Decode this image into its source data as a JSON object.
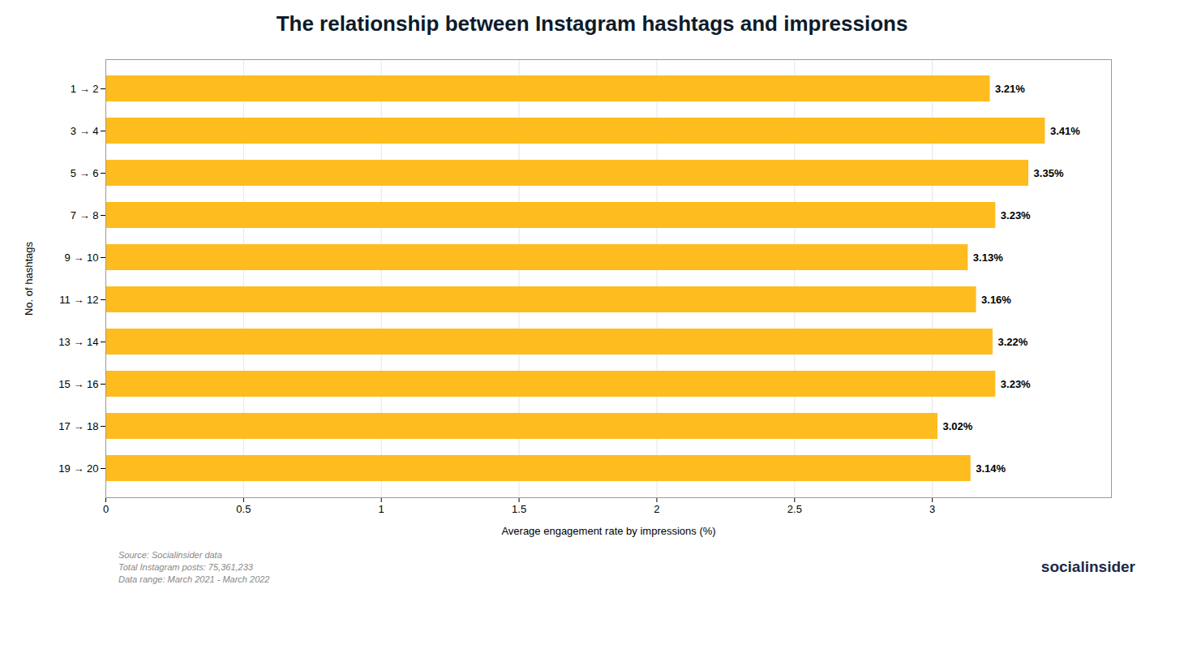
{
  "chart_data": {
    "type": "bar",
    "orientation": "horizontal",
    "title": "The relationship between Instagram hashtags and impressions",
    "categories": [
      "1 → 2",
      "3 → 4",
      "5 → 6",
      "7 → 8",
      "9 → 10",
      "11 → 12",
      "13 → 14",
      "15 → 16",
      "17 → 18",
      "19 → 20"
    ],
    "values": [
      3.21,
      3.41,
      3.35,
      3.23,
      3.13,
      3.16,
      3.22,
      3.23,
      3.02,
      3.14
    ],
    "value_labels": [
      "3.21%",
      "3.41%",
      "3.35%",
      "3.23%",
      "3.13%",
      "3.16%",
      "3.22%",
      "3.23%",
      "3.02%",
      "3.14%"
    ],
    "data_labels": true,
    "color": "#FFBC1F",
    "xlabel": "Average engagement rate by impressions (%)",
    "ylabel": "No. of hashtags",
    "xlim": [
      0,
      3.65
    ],
    "xticks": [
      0,
      0.5,
      1,
      1.5,
      2,
      2.5,
      3
    ],
    "grid": true,
    "caption": "Source: Socialinsider data\nTotal Instagram posts: 75,361,233\nData range: March 2021 - March 2022",
    "annotations": [
      "socialinsider"
    ]
  }
}
